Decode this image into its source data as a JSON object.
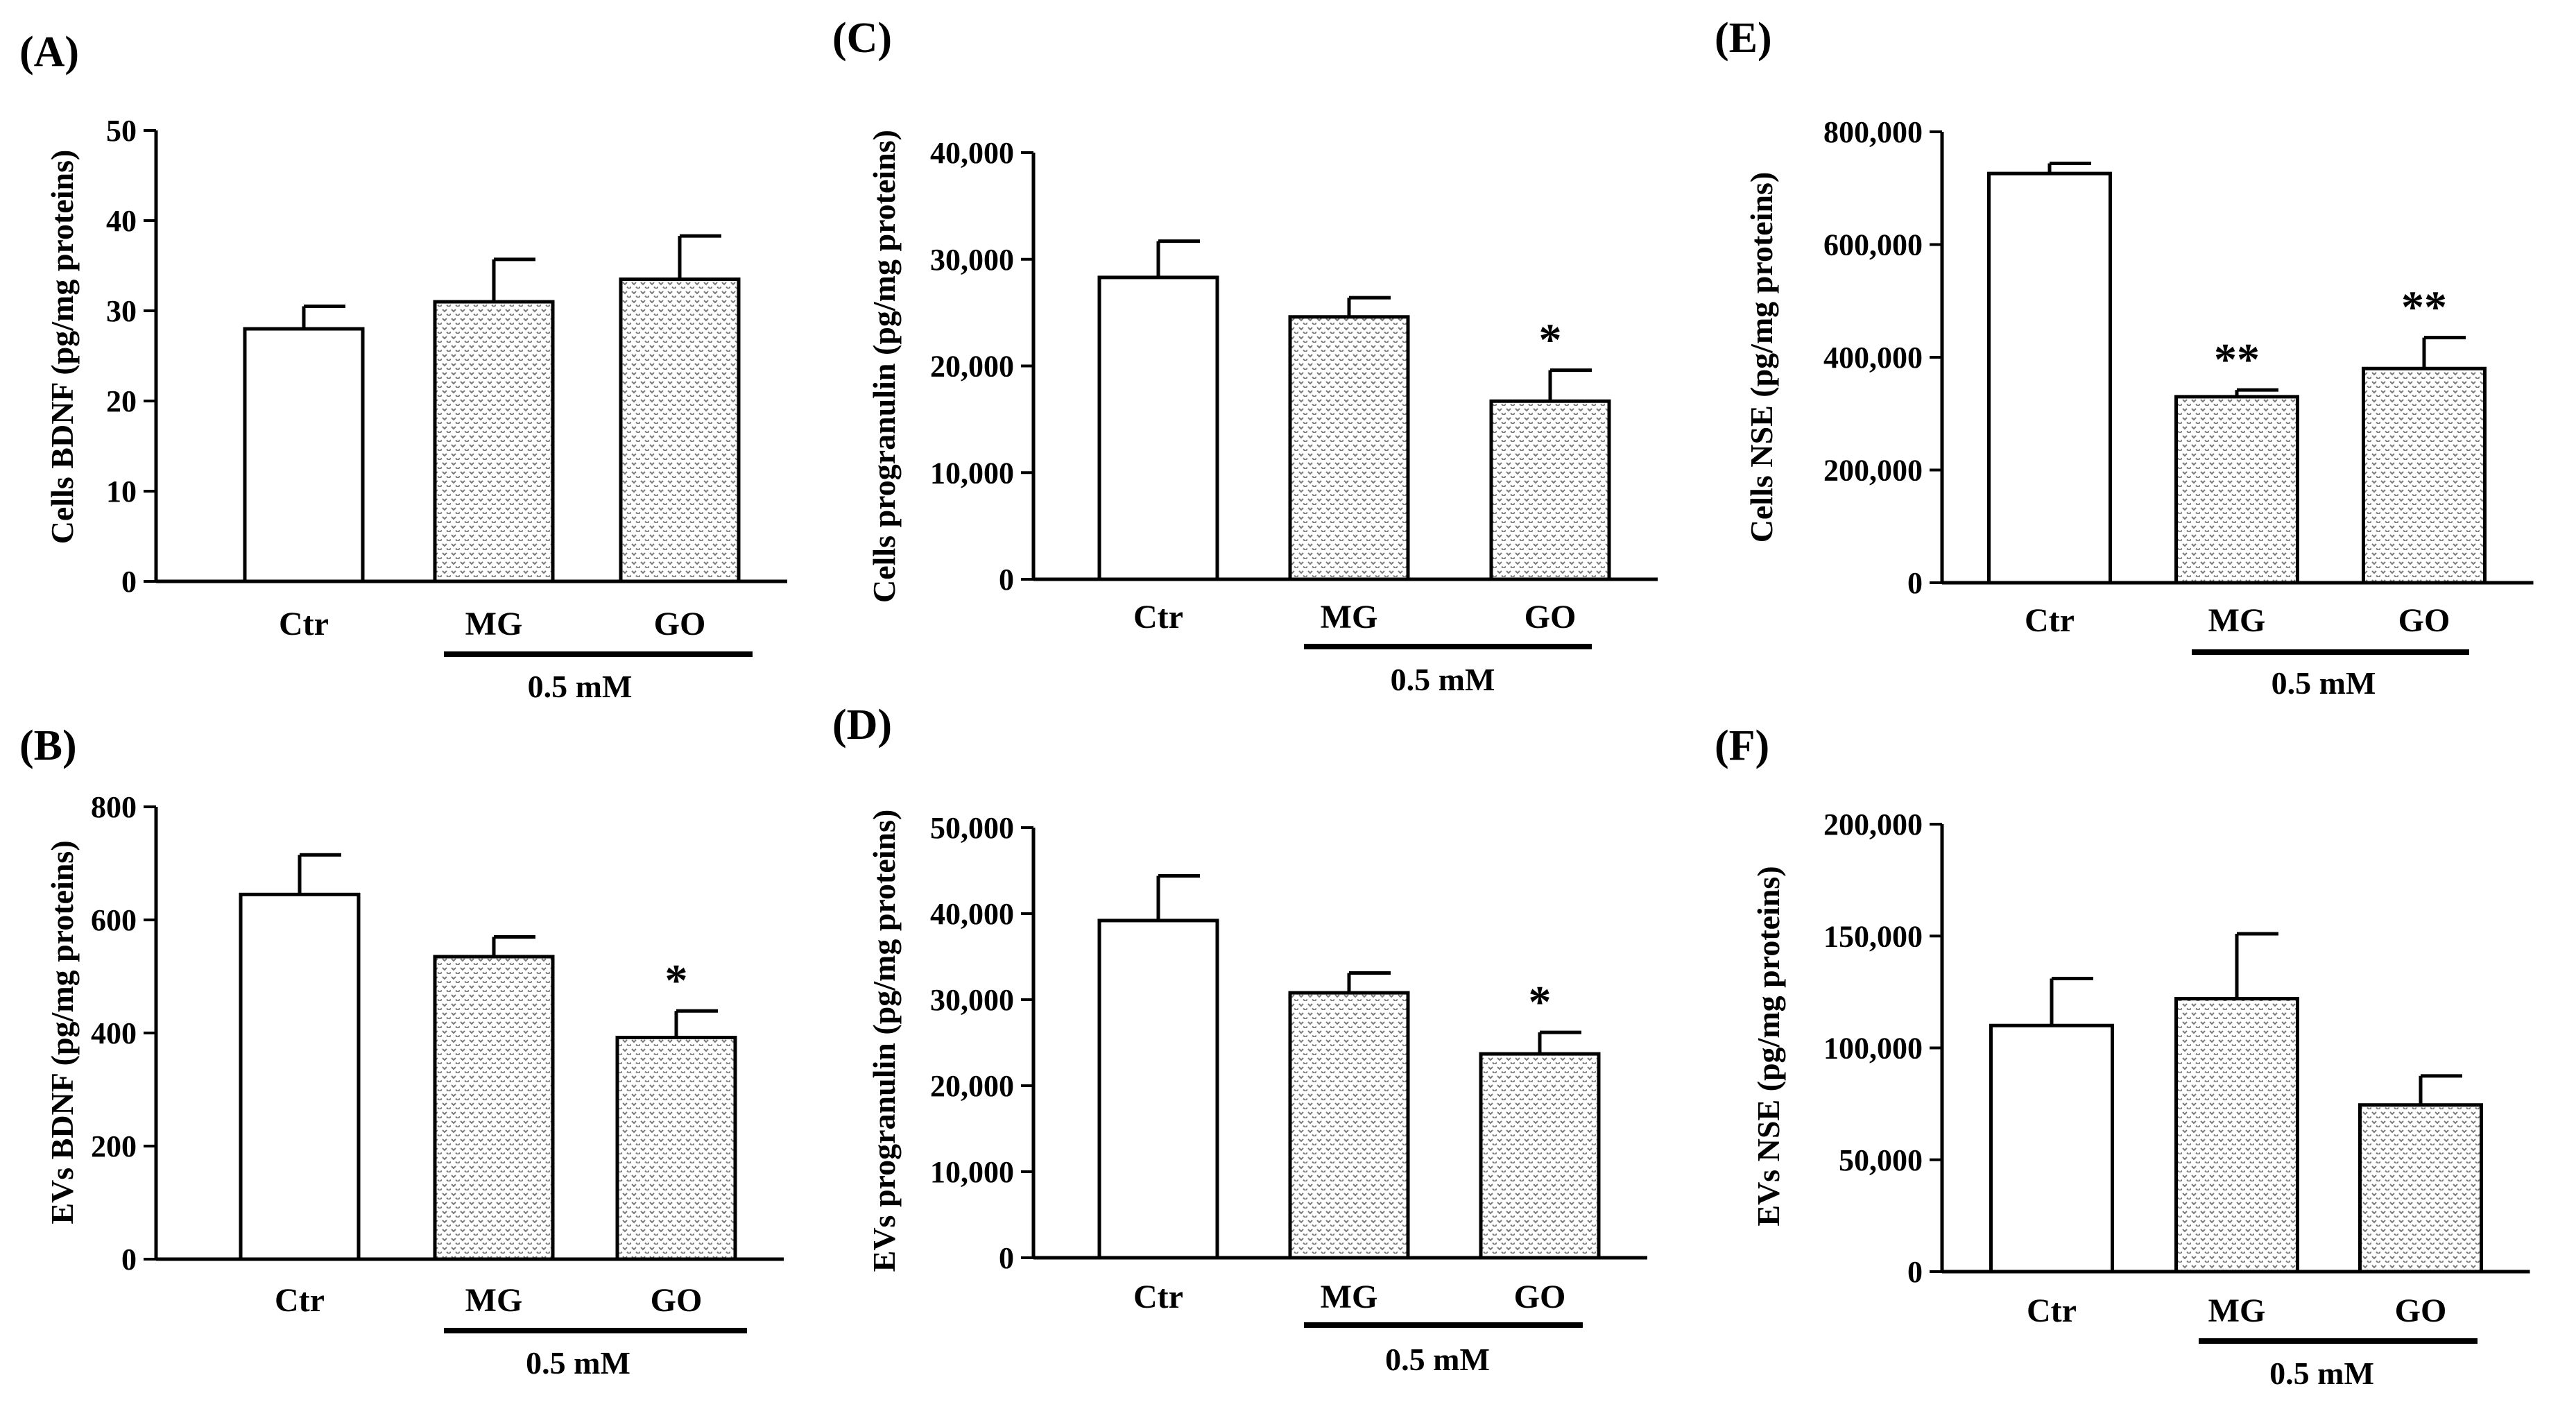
{
  "figure": {
    "bar_patterns": {
      "Ctr": "open",
      "MG": "dotted",
      "GO": "dotted"
    },
    "colors": {
      "axis": "#000000",
      "bar_fill_open": "#ffffff",
      "bar_pattern_dot": "#7a7a7a"
    }
  },
  "chart_data": [
    {
      "panel": "(A)",
      "type": "bar",
      "title": "",
      "ylabel": "Cells BDNF  (pg/mg proteins)",
      "categories": [
        "Ctr",
        "MG",
        "GO"
      ],
      "values": [
        28,
        31,
        33.5
      ],
      "errors": [
        2.5,
        4.7,
        4.8
      ],
      "significance": [
        "",
        "",
        ""
      ],
      "ylim": [
        0,
        50
      ],
      "yticks": [
        0,
        10,
        20,
        30,
        40,
        50
      ],
      "yticklabels": [
        "0",
        "10",
        "20",
        "30",
        "40",
        "50"
      ],
      "group_label": "0.5 mM"
    },
    {
      "panel": "(B)",
      "type": "bar",
      "title": "",
      "ylabel": "EVs BDNF  (pg/mg proteins)",
      "categories": [
        "Ctr",
        "MG",
        "GO"
      ],
      "values": [
        645,
        535,
        392
      ],
      "errors": [
        70,
        35,
        47
      ],
      "significance": [
        "",
        "",
        "*"
      ],
      "ylim": [
        0,
        800
      ],
      "yticks": [
        0,
        200,
        400,
        600,
        800
      ],
      "yticklabels": [
        "0",
        "200",
        "400",
        "600",
        "800"
      ],
      "group_label": "0.5 mM"
    },
    {
      "panel": "(C)",
      "type": "bar",
      "title": "",
      "ylabel": "Cells progranulin  (pg/mg proteins)",
      "categories": [
        "Ctr",
        "MG",
        "GO"
      ],
      "values": [
        28300,
        24600,
        16700
      ],
      "errors": [
        3400,
        1800,
        2900
      ],
      "significance": [
        "",
        "",
        "*"
      ],
      "ylim": [
        0,
        40000
      ],
      "yticks": [
        0,
        10000,
        20000,
        30000,
        40000
      ],
      "yticklabels": [
        "0",
        "10,000",
        "20,000",
        "30,000",
        "40,000"
      ],
      "group_label": "0.5 mM"
    },
    {
      "panel": "(D)",
      "type": "bar",
      "title": "",
      "ylabel": "EVs progranulin  (pg/mg proteins)",
      "categories": [
        "Ctr",
        "MG",
        "GO"
      ],
      "values": [
        39200,
        30800,
        23700
      ],
      "errors": [
        5200,
        2300,
        2500
      ],
      "significance": [
        "",
        "",
        "*"
      ],
      "ylim": [
        0,
        50000
      ],
      "yticks": [
        0,
        10000,
        20000,
        30000,
        40000,
        50000
      ],
      "yticklabels": [
        "0",
        "10,000",
        "20,000",
        "30,000",
        "40,000",
        "50,000"
      ],
      "group_label": "0.5 mM"
    },
    {
      "panel": "(E)",
      "type": "bar",
      "title": "",
      "ylabel": "Cells NSE  (pg/mg proteins)",
      "categories": [
        "Ctr",
        "MG",
        "GO"
      ],
      "values": [
        726000,
        330000,
        380000
      ],
      "errors": [
        18000,
        12000,
        55000
      ],
      "significance": [
        "",
        "**",
        "**"
      ],
      "ylim": [
        0,
        800000
      ],
      "yticks": [
        0,
        200000,
        400000,
        600000,
        800000
      ],
      "yticklabels": [
        "0",
        "200,000",
        "400,000",
        "600,000",
        "800,000"
      ],
      "group_label": "0.5 mM"
    },
    {
      "panel": "(F)",
      "type": "bar",
      "title": "",
      "ylabel": "EVs NSE  (pg/mg proteins)",
      "categories": [
        "Ctr",
        "MG",
        "GO"
      ],
      "values": [
        110000,
        122000,
        74500
      ],
      "errors": [
        21000,
        29000,
        13000
      ],
      "significance": [
        "",
        "",
        ""
      ],
      "ylim": [
        0,
        200000
      ],
      "yticks": [
        0,
        50000,
        100000,
        150000,
        200000
      ],
      "yticklabels": [
        "0",
        "50,000",
        "100,000",
        "150,000",
        "200,000"
      ],
      "group_label": "0.5 mM"
    }
  ]
}
